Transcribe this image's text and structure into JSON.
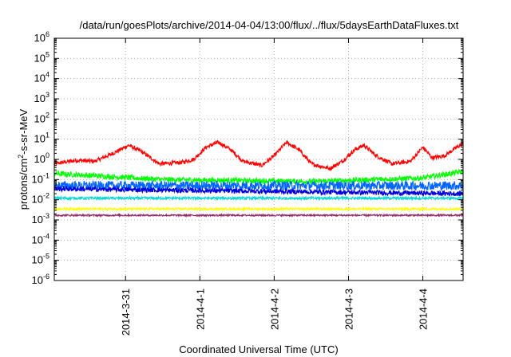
{
  "chart_data": {
    "type": "line",
    "title": "/data/run/goesPlots/archive/2014-04-04/13:00/flux/../flux/5daysEarthDataFluxes.txt",
    "xlabel": "Coordinated Universal Time (UTC)",
    "ylabel_parts": [
      "protons/cm",
      "2",
      "-s-sr-MeV"
    ],
    "y_scale": "log",
    "ylim": [
      1e-06,
      1000000.0
    ],
    "xlim": [
      "2014-03-30 01:00",
      "2014-04-04 13:00"
    ],
    "grid": true,
    "legend": "none",
    "y_ticks": [
      {
        "base": "10",
        "exp": "-6",
        "value": 1e-06
      },
      {
        "base": "10",
        "exp": "-5",
        "value": 1e-05
      },
      {
        "base": "10",
        "exp": "-4",
        "value": 0.0001
      },
      {
        "base": "10",
        "exp": "-3",
        "value": 0.001
      },
      {
        "base": "10",
        "exp": "-2",
        "value": 0.01
      },
      {
        "base": "10",
        "exp": "-1",
        "value": 0.1
      },
      {
        "base": "10",
        "exp": "0",
        "value": 1
      },
      {
        "base": "10",
        "exp": "1",
        "value": 10
      },
      {
        "base": "10",
        "exp": "2",
        "value": 100
      },
      {
        "base": "10",
        "exp": "3",
        "value": 1000
      },
      {
        "base": "10",
        "exp": "4",
        "value": 10000
      },
      {
        "base": "10",
        "exp": "5",
        "value": 100000
      },
      {
        "base": "10",
        "exp": "6",
        "value": 1000000
      }
    ],
    "x_ticks": [
      {
        "label": "2014-3-31",
        "date": "2014-03-31 00:00"
      },
      {
        "label": "2014-4-1",
        "date": "2014-04-01 00:00"
      },
      {
        "label": "2014-4-2",
        "date": "2014-04-02 00:00"
      },
      {
        "label": "2014-4-3",
        "date": "2014-04-03 00:00"
      },
      {
        "label": "2014-4-4",
        "date": "2014-04-04 00:00"
      }
    ],
    "series": [
      {
        "color": "#ff0000",
        "noise": 0.1,
        "points": [
          [
            "2014-03-30 01:00",
            0.6
          ],
          [
            "2014-03-30 08:00",
            0.9
          ],
          [
            "2014-03-30 14:00",
            0.8
          ],
          [
            "2014-03-30 20:00",
            2.0
          ],
          [
            "2014-03-31 01:00",
            5.0
          ],
          [
            "2014-03-31 05:00",
            2.5
          ],
          [
            "2014-03-31 11:00",
            0.6
          ],
          [
            "2014-03-31 18:00",
            0.7
          ],
          [
            "2014-03-31 22:00",
            1.0
          ],
          [
            "2014-04-01 02:00",
            4.0
          ],
          [
            "2014-04-01 06:00",
            7.0
          ],
          [
            "2014-04-01 10:00",
            3.0
          ],
          [
            "2014-04-01 14:00",
            0.8
          ],
          [
            "2014-04-01 20:00",
            0.5
          ],
          [
            "2014-04-02 00:00",
            1.5
          ],
          [
            "2014-04-02 04:00",
            7.0
          ],
          [
            "2014-04-02 08:00",
            3.0
          ],
          [
            "2014-04-02 12:00",
            0.6
          ],
          [
            "2014-04-02 18:00",
            0.35
          ],
          [
            "2014-04-02 22:00",
            0.8
          ],
          [
            "2014-04-03 02:00",
            3.0
          ],
          [
            "2014-04-03 05:00",
            5.0
          ],
          [
            "2014-04-03 09:00",
            1.5
          ],
          [
            "2014-04-03 14:00",
            0.6
          ],
          [
            "2014-04-03 20:00",
            0.8
          ],
          [
            "2014-04-04 00:00",
            4.0
          ],
          [
            "2014-04-04 03:00",
            1.2
          ],
          [
            "2014-04-04 07:00",
            1.5
          ],
          [
            "2014-04-04 11:00",
            4.0
          ],
          [
            "2014-04-04 13:00",
            6.0
          ]
        ]
      },
      {
        "color": "#00ff00",
        "noise": 0.13,
        "points": [
          [
            "2014-03-30 01:00",
            0.2
          ],
          [
            "2014-03-31 12:00",
            0.1
          ],
          [
            "2014-04-02 12:00",
            0.08
          ],
          [
            "2014-04-04 00:00",
            0.12
          ],
          [
            "2014-04-04 13:00",
            0.25
          ]
        ]
      },
      {
        "color": "#00d8d8",
        "noise": 0.06,
        "points": [
          [
            "2014-03-30 01:00",
            0.012
          ],
          [
            "2014-04-04 13:00",
            0.012
          ]
        ]
      },
      {
        "color": "#0066ff",
        "noise": 0.22,
        "points": [
          [
            "2014-03-30 01:00",
            0.05
          ],
          [
            "2014-04-04 13:00",
            0.05
          ]
        ]
      },
      {
        "color": "#0000dd",
        "noise": 0.12,
        "points": [
          [
            "2014-03-30 01:00",
            0.035
          ],
          [
            "2014-04-04 13:00",
            0.02
          ]
        ]
      },
      {
        "color": "#ffff00",
        "noise": 0.05,
        "points": [
          [
            "2014-03-30 01:00",
            0.0035
          ],
          [
            "2014-04-04 13:00",
            0.0035
          ]
        ]
      },
      {
        "color": "#9a2a6a",
        "noise": 0.04,
        "points": [
          [
            "2014-03-30 01:00",
            0.0017
          ],
          [
            "2014-04-04 13:00",
            0.0017
          ]
        ]
      }
    ]
  }
}
